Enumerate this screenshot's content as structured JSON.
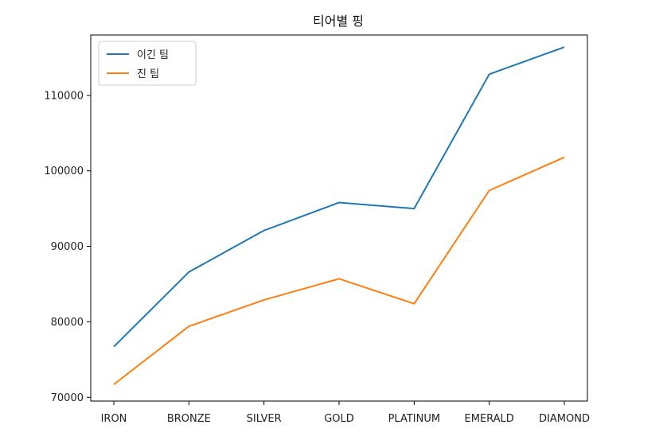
{
  "chart_data": {
    "type": "line",
    "title": "티어별 핑",
    "xlabel": "",
    "ylabel": "",
    "categories": [
      "IRON",
      "BRONZE",
      "SILVER",
      "GOLD",
      "PLATINUM",
      "EMERALD",
      "DIAMOND"
    ],
    "ylim": [
      69500,
      118000
    ],
    "yticks": [
      70000,
      80000,
      90000,
      100000,
      110000
    ],
    "ytick_labels": [
      "70000",
      "80000",
      "90000",
      "100000",
      "110000"
    ],
    "legend_position": "upper-left",
    "grid": false,
    "series": [
      {
        "name": "이긴 팀",
        "color": "#1f77b4",
        "values": [
          76700,
          86600,
          92100,
          95800,
          95000,
          112800,
          116400
        ]
      },
      {
        "name": "진 팀",
        "color": "#ff7f0e",
        "values": [
          71700,
          79400,
          82900,
          85700,
          82400,
          97400,
          101800
        ]
      }
    ]
  }
}
